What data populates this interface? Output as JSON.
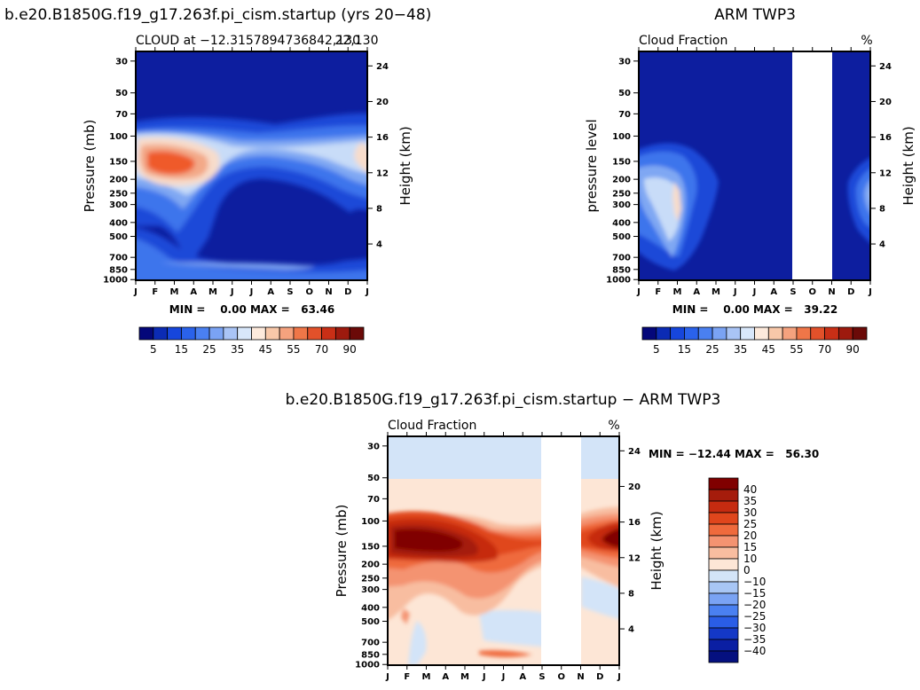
{
  "chart_data": [
    {
      "type": "heatmap",
      "title": "b.e20.B1850G.f19_g17.263f.pi_cism.startup (yrs 20−48)",
      "subtitle_left": "CLOUD at −12.3157894736842,130",
      "subtitle_right": "22,130",
      "ylabel": "Pressure (mb)",
      "ylabel_right": "Height (km)",
      "x_categories": [
        "J",
        "F",
        "M",
        "A",
        "M",
        "J",
        "J",
        "A",
        "S",
        "O",
        "N",
        "D",
        "J"
      ],
      "y_pressure_ticks": [
        "30",
        "50",
        "70",
        "100",
        "150",
        "200",
        "250",
        "300",
        "400",
        "500",
        "700",
        "850",
        "1000"
      ],
      "y_height_ticks": [
        "24",
        "20",
        "16",
        "12",
        "8",
        "4"
      ],
      "minmax_text": "MIN =    0.00 MAX =   63.46",
      "min": 0.0,
      "max": 63.46,
      "colorbar_labels": [
        "5",
        "15",
        "25",
        "35",
        "45",
        "55",
        "70",
        "90"
      ],
      "colorbar_colors": [
        "#04077a",
        "#0b2bb4",
        "#1646dc",
        "#2a62eb",
        "#4a80f1",
        "#7aa3f4",
        "#a9c4f6",
        "#d8e7fa",
        "#fdeadc",
        "#f8c8a9",
        "#f5a27e",
        "#ef7648",
        "#e2512a",
        "#c92f16",
        "#9d1a0e",
        "#6b0a08"
      ],
      "zones": [
        {
          "fill": "#0d1e9f",
          "desc": "background"
        },
        {
          "fill": "#1c48d8"
        },
        {
          "fill": "#3e74ec"
        },
        {
          "fill": "#7fa7f3"
        },
        {
          "fill": "#c8dcf8"
        },
        {
          "fill": "#f7dccb"
        },
        {
          "fill": "#f3a988"
        },
        {
          "fill": "#ef5a2c"
        }
      ]
    },
    {
      "type": "heatmap",
      "title": "ARM TWP3",
      "subtitle_left": "Cloud Fraction",
      "subtitle_right": "%",
      "ylabel": "pressure level",
      "ylabel_right": "Height (km)",
      "x_categories": [
        "J",
        "F",
        "M",
        "A",
        "M",
        "J",
        "J",
        "A",
        "S",
        "O",
        "N",
        "D",
        "J"
      ],
      "y_pressure_ticks": [
        "30",
        "50",
        "70",
        "100",
        "150",
        "200",
        "250",
        "300",
        "400",
        "500",
        "700",
        "850",
        "1000"
      ],
      "y_height_ticks": [
        "24",
        "20",
        "16",
        "12",
        "8",
        "4"
      ],
      "minmax_text": "MIN =    0.00 MAX =   39.22",
      "min": 0.0,
      "max": 39.22,
      "missing_months": [
        "S",
        "O",
        "N"
      ],
      "colorbar_labels": [
        "5",
        "15",
        "25",
        "35",
        "45",
        "55",
        "70",
        "90"
      ]
    },
    {
      "type": "heatmap",
      "title": "b.e20.B1850G.f19_g17.263f.pi_cism.startup − ARM TWP3",
      "subtitle_left": "Cloud Fraction",
      "subtitle_right": "%",
      "ylabel": "Pressure (mb)",
      "ylabel_right": "Height (km)",
      "x_categories": [
        "J",
        "F",
        "M",
        "A",
        "M",
        "J",
        "J",
        "A",
        "S",
        "O",
        "N",
        "D",
        "J"
      ],
      "y_pressure_ticks": [
        "30",
        "50",
        "70",
        "100",
        "150",
        "200",
        "250",
        "300",
        "400",
        "500",
        "700",
        "850",
        "1000"
      ],
      "y_height_ticks": [
        "24",
        "20",
        "16",
        "12",
        "8",
        "4"
      ],
      "minmax_text": "MIN = −12.44 MAX =   56.30",
      "min": -12.44,
      "max": 56.3,
      "missing_months": [
        "S",
        "O",
        "N"
      ],
      "colorbar_labels": [
        "40",
        "35",
        "30",
        "25",
        "20",
        "15",
        "10",
        "0",
        "−10",
        "−15",
        "−20",
        "−25",
        "−30",
        "−35",
        "−40"
      ],
      "colorbar_colors": [
        "#800000",
        "#a51c0c",
        "#c62b10",
        "#e0461c",
        "#ef6a3c",
        "#f49371",
        "#f8bda0",
        "#fde6d6",
        "#d3e4f8",
        "#a8c6f5",
        "#7aa3f4",
        "#4a80f1",
        "#2a5de7",
        "#1438c6",
        "#0a1fa3",
        "#05107f"
      ]
    }
  ]
}
